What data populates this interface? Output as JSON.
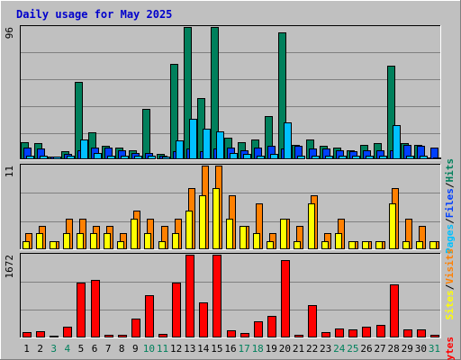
{
  "chart_data": {
    "type": "bar",
    "title": "Daily usage for May 2025",
    "categories": [
      "1",
      "2",
      "3",
      "4",
      "5",
      "6",
      "7",
      "8",
      "9",
      "10",
      "11",
      "12",
      "13",
      "14",
      "15",
      "16",
      "17",
      "18",
      "19",
      "20",
      "21",
      "22",
      "23",
      "24",
      "25",
      "26",
      "27",
      "28",
      "29",
      "30",
      "31"
    ],
    "weekend_days": [
      3,
      4,
      10,
      11,
      17,
      18,
      24,
      25,
      31
    ],
    "colors": {
      "frame_bg": "#c0c0c0",
      "plot_bg": "#c0c0c0",
      "grid": "#808080",
      "title": "#0000cc",
      "hits": "#00805c",
      "files": "#0040ff",
      "pages": "#00c0ff",
      "visits": "#ff8000",
      "sites": "#ffff00",
      "kbytes": "#ff0000",
      "weekday_label": "#000000",
      "weekend_label": "#00805c"
    },
    "panels": [
      {
        "id": "requests",
        "max_label": "96",
        "ymax": 96,
        "legend": [
          {
            "text": "Hits",
            "color": "#00805c"
          },
          {
            "text": "/",
            "color": "#000000"
          },
          {
            "text": "Files",
            "color": "#0040ff"
          },
          {
            "text": "/",
            "color": "#000000"
          },
          {
            "text": "Pages",
            "color": "#00c0ff"
          }
        ],
        "series": [
          {
            "name": "Hits",
            "color": "#00805c",
            "values": [
              12,
              11,
              1,
              5,
              56,
              19,
              9,
              8,
              6,
              36,
              3,
              69,
              96,
              44,
              96,
              15,
              12,
              14,
              31,
              92,
              10,
              14,
              9,
              8,
              6,
              10,
              11,
              68,
              11,
              10,
              0
            ]
          },
          {
            "name": "Files",
            "color": "#0040ff",
            "values": [
              8,
              7,
              1,
              3,
              6,
              8,
              8,
              6,
              4,
              4,
              2,
              5,
              7,
              5,
              7,
              8,
              6,
              8,
              9,
              7,
              9,
              7,
              7,
              6,
              5,
              6,
              6,
              6,
              10,
              9,
              8
            ]
          },
          {
            "name": "Pages",
            "color": "#00c0ff",
            "values": [
              2,
              2,
              1,
              2,
              14,
              4,
              2,
              2,
              2,
              2,
              1,
              13,
              29,
              22,
              20,
              4,
              3,
              2,
              3,
              26,
              2,
              2,
              2,
              2,
              2,
              2,
              2,
              24,
              2,
              2,
              0
            ]
          }
        ]
      },
      {
        "id": "visits",
        "max_label": "11",
        "ymax": 11,
        "legend": [
          {
            "text": "Visits",
            "color": "#ff8000"
          },
          {
            "text": "/",
            "color": "#000000"
          },
          {
            "text": "Sites",
            "color": "#ffff00"
          }
        ],
        "series": [
          {
            "name": "Visits",
            "color": "#ff8000",
            "values": [
              2,
              3,
              1,
              4,
              4,
              3,
              3,
              2,
              5,
              4,
              3,
              4,
              8,
              11,
              11,
              7,
              3,
              6,
              2,
              4,
              3,
              7,
              2,
              4,
              1,
              1,
              1,
              8,
              4,
              3,
              1
            ]
          },
          {
            "name": "Sites",
            "color": "#ffff00",
            "values": [
              1,
              2,
              1,
              2,
              2,
              2,
              2,
              1,
              4,
              2,
              1,
              2,
              5,
              7,
              8,
              4,
              3,
              2,
              1,
              4,
              1,
              6,
              1,
              2,
              1,
              1,
              1,
              6,
              1,
              1,
              1
            ]
          }
        ]
      },
      {
        "id": "kbytes",
        "max_label": "1672",
        "ymax": 1672,
        "legend": [
          {
            "text": "KBytes",
            "color": "#ff0000"
          }
        ],
        "series": [
          {
            "name": "KBytes",
            "color": "#ff0000",
            "values": [
              100,
              110,
              0,
              210,
              1100,
              1150,
              40,
              40,
              370,
              850,
              60,
              1100,
              1672,
              700,
              1672,
              130,
              80,
              310,
              430,
              1560,
              40,
              640,
              100,
              170,
              150,
              200,
              240,
              1070,
              150,
              140,
              20
            ]
          }
        ]
      }
    ]
  }
}
